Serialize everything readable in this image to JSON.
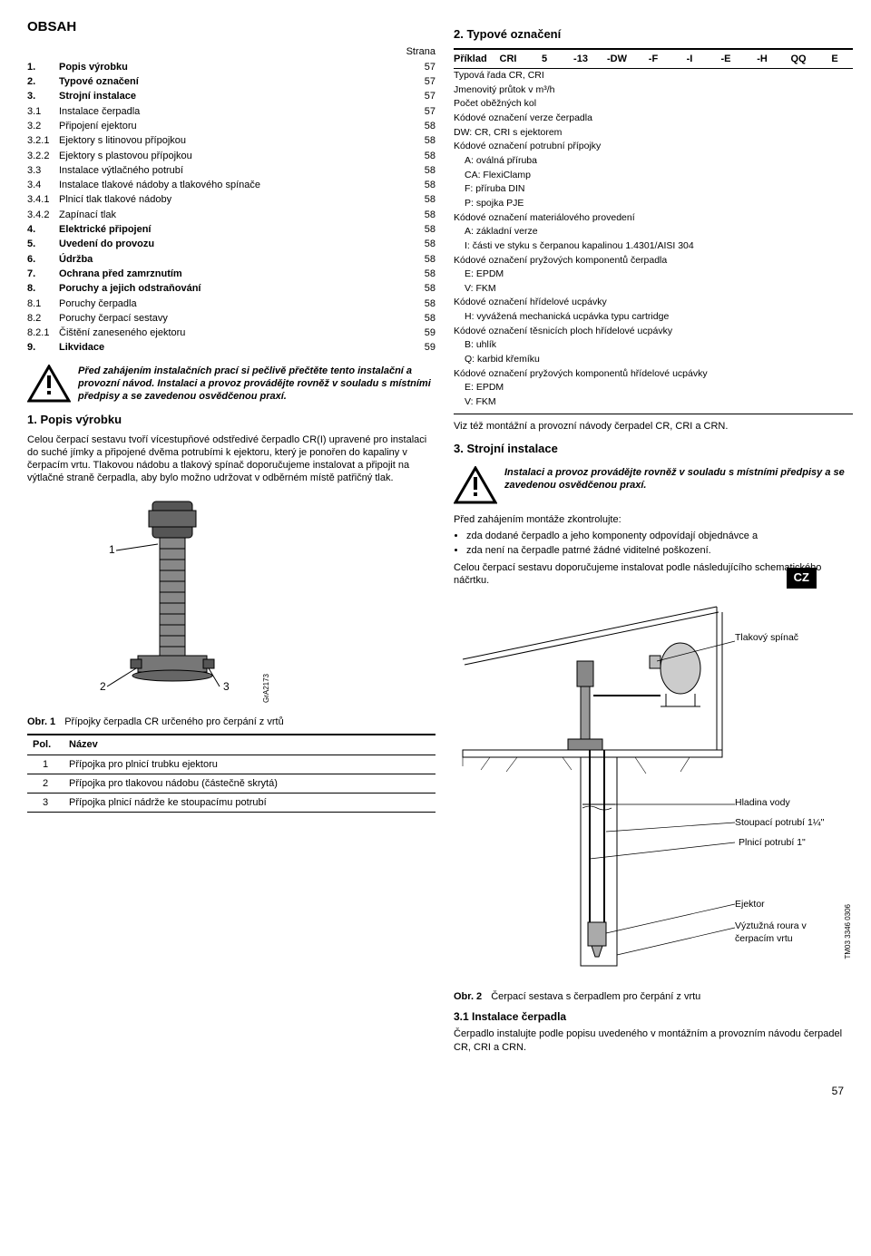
{
  "heading_obsah": "OBSAH",
  "strana_label": "Strana",
  "toc": [
    {
      "num": "1.",
      "label": "Popis výrobku",
      "page": "57",
      "bold": true
    },
    {
      "num": "2.",
      "label": "Typové označení",
      "page": "57",
      "bold": true
    },
    {
      "num": "3.",
      "label": "Strojní instalace",
      "page": "57",
      "bold": true
    },
    {
      "num": "3.1",
      "label": "Instalace čerpadla",
      "page": "57",
      "bold": false
    },
    {
      "num": "3.2",
      "label": "Připojení ejektoru",
      "page": "58",
      "bold": false
    },
    {
      "num": "3.2.1",
      "label": "Ejektory s litinovou přípojkou",
      "page": "58",
      "bold": false
    },
    {
      "num": "3.2.2",
      "label": "Ejektory s plastovou přípojkou",
      "page": "58",
      "bold": false
    },
    {
      "num": "3.3",
      "label": "Instalace výtlačného potrubí",
      "page": "58",
      "bold": false
    },
    {
      "num": "3.4",
      "label": "Instalace tlakové nádoby a tlakového spínače",
      "page": "58",
      "bold": false
    },
    {
      "num": "3.4.1",
      "label": "Plnicí tlak tlakové nádoby",
      "page": "58",
      "bold": false
    },
    {
      "num": "3.4.2",
      "label": "Zapínací tlak",
      "page": "58",
      "bold": false
    },
    {
      "num": "4.",
      "label": "Elektrické připojení",
      "page": "58",
      "bold": true
    },
    {
      "num": "5.",
      "label": "Uvedení do provozu",
      "page": "58",
      "bold": true
    },
    {
      "num": "6.",
      "label": "Údržba",
      "page": "58",
      "bold": true
    },
    {
      "num": "7.",
      "label": "Ochrana před zamrznutím",
      "page": "58",
      "bold": true
    },
    {
      "num": "8.",
      "label": "Poruchy a jejich odstraňování",
      "page": "58",
      "bold": true
    },
    {
      "num": "8.1",
      "label": "Poruchy čerpadla",
      "page": "58",
      "bold": false
    },
    {
      "num": "8.2",
      "label": "Poruchy čerpací sestavy",
      "page": "58",
      "bold": false
    },
    {
      "num": "8.2.1",
      "label": "Čištění zaneseného ejektoru",
      "page": "59",
      "bold": false
    },
    {
      "num": "9.",
      "label": "Likvidace",
      "page": "59",
      "bold": true
    }
  ],
  "warning1_text": "Před zahájením instalačních prací si pečlivě přečtěte tento instalační a provozní návod. Instalaci a provoz provádějte rovněž v souladu s místními předpisy a se zavedenou osvědčenou praxí.",
  "h_popis": "1. Popis výrobku",
  "popis_p1": "Celou čerpací sestavu tvoří vícestupňové odstředivé čerpadlo CR(I) upravené pro instalaci do suché jímky a připojené dvěma potrubími k ejektoru, který je ponořen do kapaliny v čerpacím vrtu. Tlakovou nádobu a tlakový spínač doporučujeme instalovat a připojit na výtlačné straně čerpadla, aby bylo možno udržovat v odběrném místě patřičný tlak.",
  "pump_labels": {
    "n1": "1",
    "n2": "2",
    "n3": "3"
  },
  "gra_code": "GrA2173",
  "fig1_num": "Obr. 1",
  "fig1_cap": "Přípojky čerpadla CR určeného pro čerpání z vrtů",
  "pol_h1": "Pol.",
  "pol_h2": "Název",
  "pol_rows": [
    {
      "n": "1",
      "t": "Přípojka pro plnicí trubku ejektoru"
    },
    {
      "n": "2",
      "t": "Přípojka pro tlakovou nádobu (částečně skrytá)"
    },
    {
      "n": "3",
      "t": "Přípojka plnicí nádrže ke stoupacímu potrubí"
    }
  ],
  "h_typ": "2. Typové označení",
  "typ_header_label": "Příklad",
  "typ_header_cells": [
    "CRI",
    "5",
    "-13",
    "-DW",
    "-F",
    "-I",
    "-E",
    "-H",
    "QQ",
    "E"
  ],
  "typ_rows": [
    {
      "t": "Typová řada CR, CRI",
      "indent": false
    },
    {
      "t": "Jmenovitý průtok v m³/h",
      "indent": false
    },
    {
      "t": "Počet oběžných kol",
      "indent": false
    },
    {
      "t": "Kódové označení verze čerpadla",
      "indent": false
    },
    {
      "t": "DW: CR, CRI s ejektorem",
      "indent": false
    },
    {
      "t": "Kódové označení potrubní přípojky",
      "indent": false
    },
    {
      "t": "A:  oválná příruba",
      "indent": true
    },
    {
      "t": "CA: FlexiClamp",
      "indent": true
    },
    {
      "t": "F:  příruba DIN",
      "indent": true
    },
    {
      "t": "P:  spojka PJE",
      "indent": true
    },
    {
      "t": "Kódové označení materiálového provedení",
      "indent": false
    },
    {
      "t": "A:  základní verze",
      "indent": true
    },
    {
      "t": "I:  části ve styku s čerpanou kapalinou 1.4301/AISI 304",
      "indent": true
    },
    {
      "t": "Kódové označení pryžových komponentů čerpadla",
      "indent": false
    },
    {
      "t": "E:  EPDM",
      "indent": true
    },
    {
      "t": "V:  FKM",
      "indent": true
    },
    {
      "t": "Kódové označení hřídelové ucpávky",
      "indent": false
    },
    {
      "t": "H:  vyvážená mechanická ucpávka typu cartridge",
      "indent": true
    },
    {
      "t": "Kódové označení těsnicích ploch hřídelové ucpávky",
      "indent": false
    },
    {
      "t": "B:  uhlík",
      "indent": true
    },
    {
      "t": "Q:  karbid křemíku",
      "indent": true
    },
    {
      "t": "Kódové označení pryžových komponentů hřídelové ucpávky",
      "indent": false
    },
    {
      "t": "E:  EPDM",
      "indent": true
    },
    {
      "t": "V:  FKM",
      "indent": true
    }
  ],
  "typ_footer": "Viz též montážní a provozní návody čerpadel CR, CRI a CRN.",
  "h_strojni": "3. Strojní instalace",
  "warning2_text": "Instalaci a provoz provádějte rovněž v souladu s místními předpisy a se zavedenou osvědčenou praxí.",
  "strojni_p1": "Před zahájením montáže zkontrolujte:",
  "strojni_bullets": [
    "zda dodané čerpadlo a jeho komponenty odpovídají objednávce a",
    "zda není na čerpadle patrné žádné viditelné poškození."
  ],
  "strojni_p2": "Celou čerpací sestavu doporučujeme instalovat podle následujícího schematického náčrtku.",
  "diag_labels": {
    "tlak_spinac": "Tlakový spínač",
    "hladina": "Hladina vody",
    "stoupaci": "Stoupací potrubí 1¼\"",
    "plnici": "Plnicí potrubí 1\"",
    "ejektor": "Ejektor",
    "vyztuzna": "Výztužná roura v čerpacím vrtu"
  },
  "tm_code": "TM03 3346 0306",
  "fig2_num": "Obr. 2",
  "fig2_cap": "Čerpací sestava s čerpadlem pro čerpání z vrtu",
  "h_31": "3.1 Instalace čerpadla",
  "p_31": "Čerpadlo instalujte podle popisu uvedeného v montážním a provozním návodu čerpadel CR, CRI a CRN.",
  "cz_badge": "CZ",
  "page_number": "57"
}
